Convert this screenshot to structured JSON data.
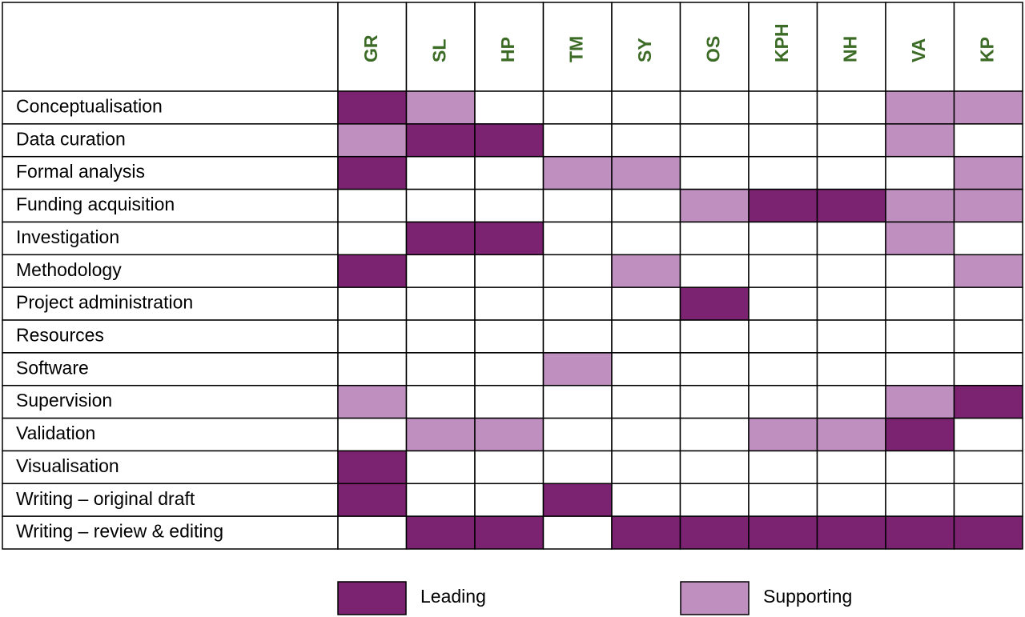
{
  "table": {
    "columns": [
      "GR",
      "SL",
      "HP",
      "TM",
      "SY",
      "OS",
      "KPH",
      "NH",
      "VA",
      "KP"
    ],
    "rows": [
      "Conceptualisation",
      "Data curation",
      "Formal analysis",
      "Funding acquisition",
      "Investigation",
      "Methodology",
      "Project administration",
      "Resources",
      "Software",
      "Supervision",
      "Validation",
      "Visualisation",
      "Writing – original draft",
      "Writing – review & editing"
    ],
    "cells": [
      [
        0,
        1,
        null,
        null,
        null,
        null,
        null,
        null,
        1,
        1
      ],
      [
        1,
        0,
        0,
        null,
        null,
        null,
        null,
        null,
        1,
        null
      ],
      [
        0,
        null,
        null,
        1,
        1,
        null,
        null,
        null,
        null,
        1
      ],
      [
        null,
        null,
        null,
        null,
        null,
        1,
        0,
        0,
        1,
        1
      ],
      [
        null,
        0,
        0,
        null,
        null,
        null,
        null,
        null,
        1,
        null
      ],
      [
        0,
        null,
        null,
        null,
        1,
        null,
        null,
        null,
        null,
        1
      ],
      [
        null,
        null,
        null,
        null,
        null,
        0,
        null,
        null,
        null,
        null
      ],
      [
        null,
        null,
        null,
        null,
        null,
        null,
        null,
        null,
        null,
        null
      ],
      [
        null,
        null,
        null,
        1,
        null,
        null,
        null,
        null,
        null,
        null
      ],
      [
        1,
        null,
        null,
        null,
        null,
        null,
        null,
        null,
        1,
        0
      ],
      [
        null,
        1,
        1,
        null,
        null,
        null,
        1,
        1,
        0,
        null
      ],
      [
        0,
        null,
        null,
        null,
        null,
        null,
        null,
        null,
        null,
        null
      ],
      [
        0,
        null,
        null,
        0,
        null,
        null,
        null,
        null,
        null,
        null
      ],
      [
        null,
        0,
        0,
        null,
        0,
        0,
        0,
        0,
        0,
        0
      ]
    ]
  },
  "legend": [
    {
      "label": "Leading",
      "color": "#7b2270"
    },
    {
      "label": "Supporting",
      "color": "#bf8fbf"
    }
  ]
}
